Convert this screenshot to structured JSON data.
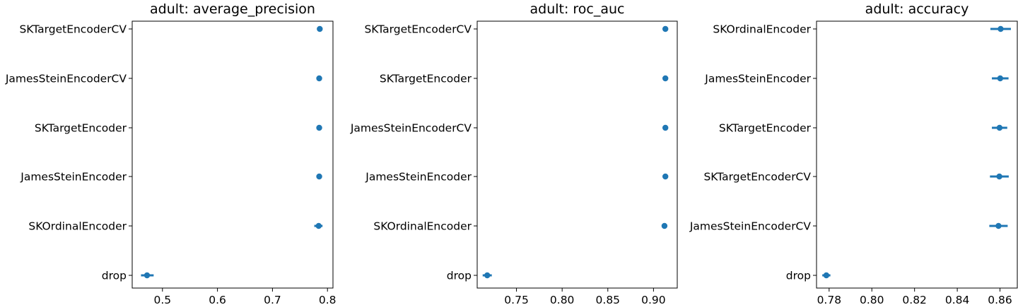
{
  "chart_data": [
    {
      "type": "scatter",
      "title": "adult: average_precision",
      "xlabel": "",
      "ylabel": "",
      "xlim": [
        0.445,
        0.81
      ],
      "xticks": [
        0.5,
        0.6,
        0.7,
        0.8
      ],
      "xtick_labels": [
        "0.5",
        "0.6",
        "0.7",
        "0.8"
      ],
      "categories": [
        "SKTargetEncoderCV",
        "JamesSteinEncoderCV",
        "SKTargetEncoder",
        "JamesSteinEncoder",
        "SKOrdinalEncoder",
        "drop"
      ],
      "means": [
        0.786,
        0.785,
        0.785,
        0.785,
        0.784,
        0.472
      ],
      "ci_low": [
        0.781,
        0.781,
        0.781,
        0.781,
        0.776,
        0.461
      ],
      "ci_high": [
        0.79,
        0.789,
        0.789,
        0.789,
        0.791,
        0.484
      ],
      "color": "#1f77b4"
    },
    {
      "type": "scatter",
      "title": "adult: roc_auc",
      "xlabel": "",
      "ylabel": "",
      "xlim": [
        0.707,
        0.926
      ],
      "xticks": [
        0.75,
        0.8,
        0.85,
        0.9
      ],
      "xtick_labels": [
        "0.75",
        "0.80",
        "0.85",
        "0.90"
      ],
      "categories": [
        "SKTargetEncoderCV",
        "SKTargetEncoder",
        "JamesSteinEncoderCV",
        "JamesSteinEncoder",
        "SKOrdinalEncoder",
        "drop"
      ],
      "means": [
        0.913,
        0.913,
        0.913,
        0.913,
        0.912,
        0.718
      ],
      "ci_low": [
        0.911,
        0.911,
        0.911,
        0.911,
        0.909,
        0.713
      ],
      "ci_high": [
        0.915,
        0.915,
        0.915,
        0.915,
        0.915,
        0.723
      ],
      "color": "#1f77b4"
    },
    {
      "type": "scatter",
      "title": "adult: accuracy",
      "xlabel": "",
      "ylabel": "",
      "xlim": [
        0.7741,
        0.8681
      ],
      "xticks": [
        0.78,
        0.8,
        0.82,
        0.84,
        0.86
      ],
      "xtick_labels": [
        "0.78",
        "0.80",
        "0.82",
        "0.84",
        "0.86"
      ],
      "categories": [
        "SKOrdinalEncoder",
        "JamesSteinEncoder",
        "SKTargetEncoder",
        "SKTargetEncoderCV",
        "JamesSteinEncoderCV",
        "drop"
      ],
      "means": [
        0.8603,
        0.8601,
        0.8598,
        0.8597,
        0.8593,
        0.7787
      ],
      "ci_low": [
        0.8555,
        0.8562,
        0.8562,
        0.8553,
        0.855,
        0.7768
      ],
      "ci_high": [
        0.8651,
        0.864,
        0.8634,
        0.8641,
        0.8636,
        0.7806
      ],
      "color": "#1f77b4"
    }
  ]
}
